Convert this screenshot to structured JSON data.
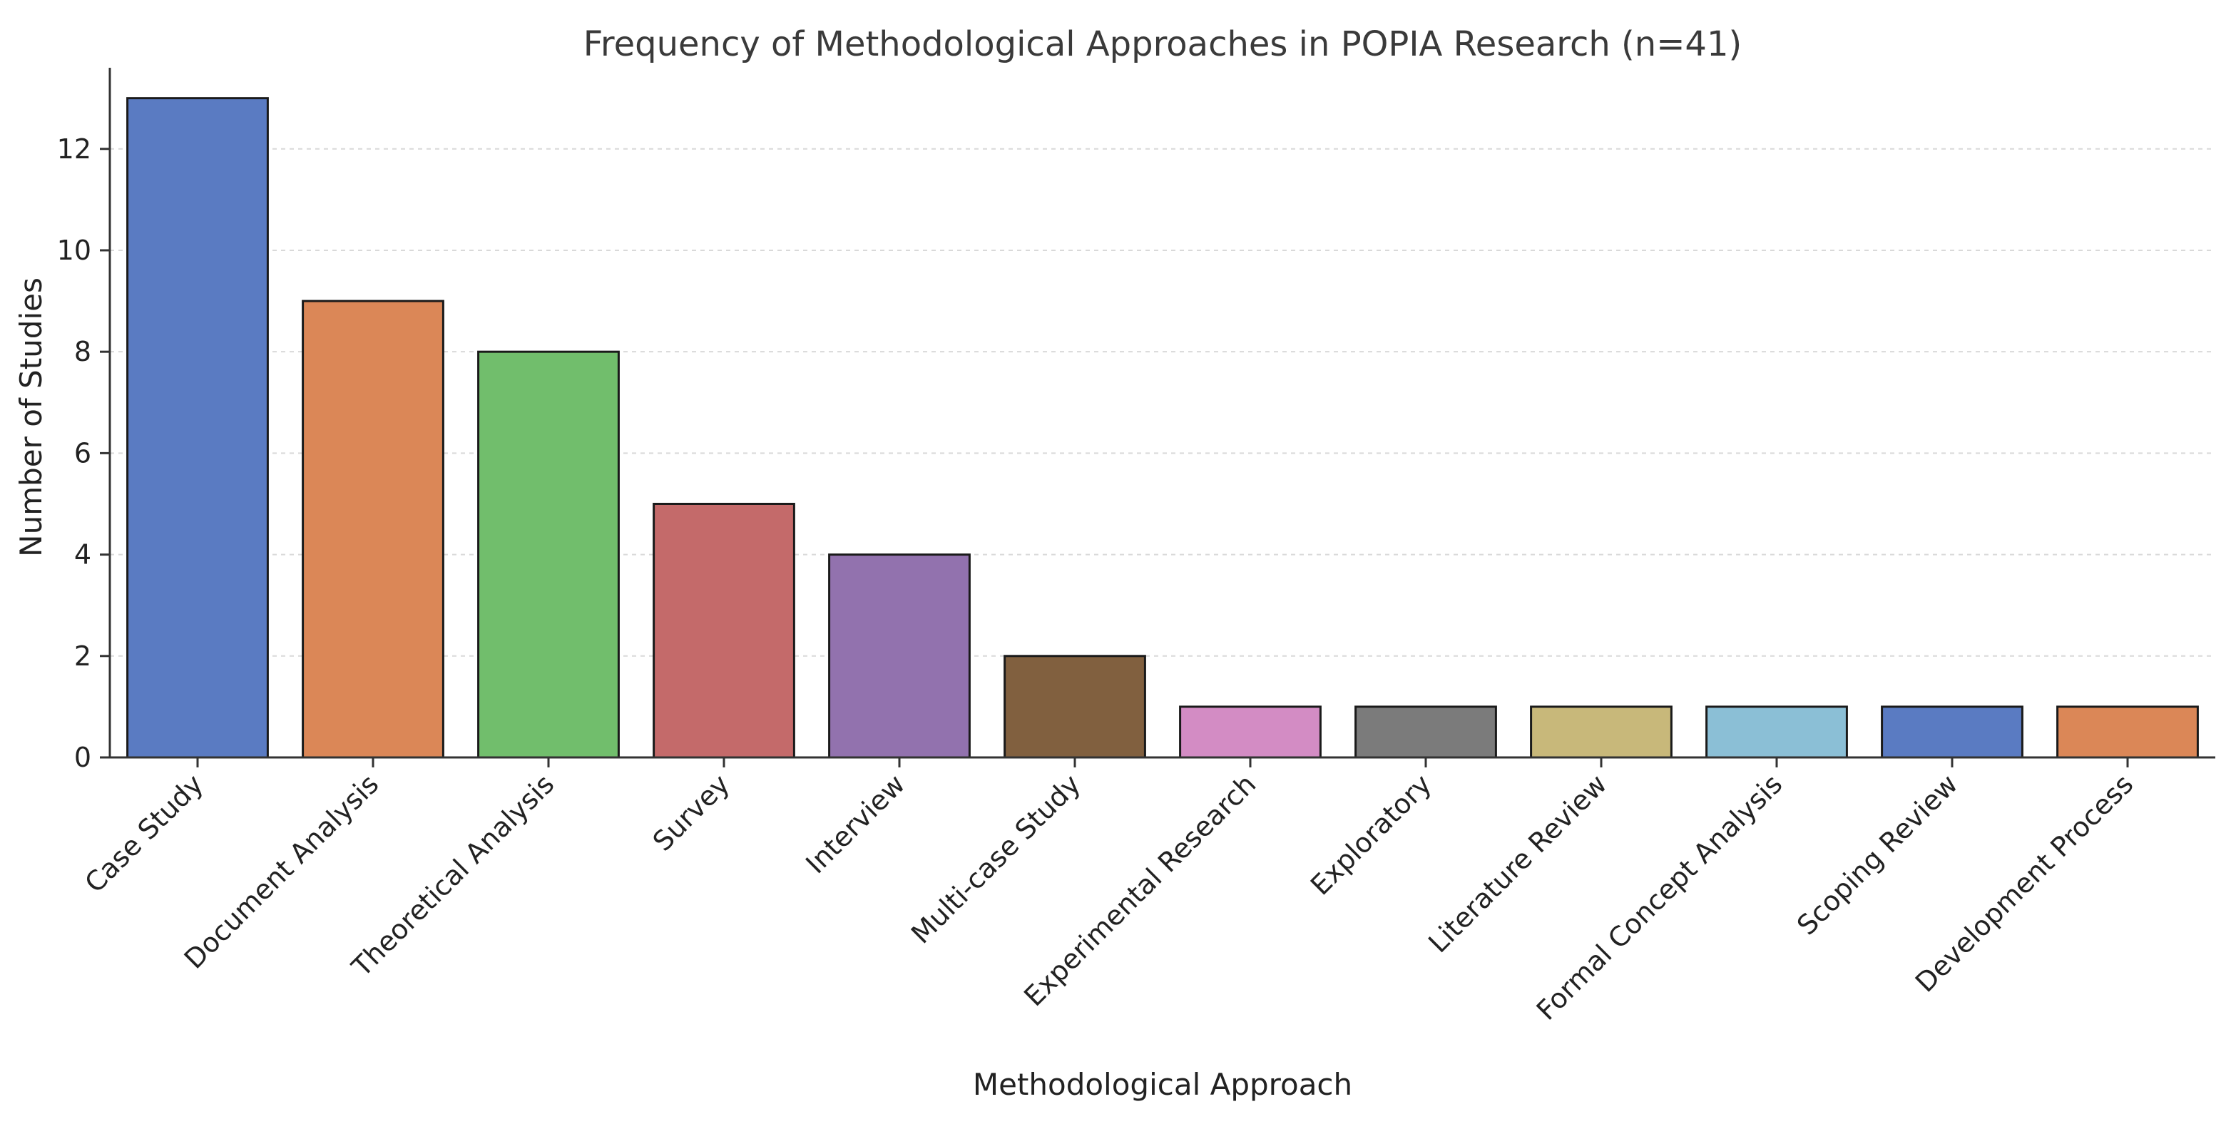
{
  "chart_data": {
    "type": "bar",
    "title": "Frequency of Methodological Approaches in POPIA Research (n=41)",
    "xlabel": "Methodological Approach",
    "ylabel": "Number of Studies",
    "ylim": [
      0,
      13.6
    ],
    "yticks": [
      0,
      2,
      4,
      6,
      8,
      10,
      12
    ],
    "grid": "horizontal dashed",
    "categories": [
      "Case Study",
      "Document Analysis",
      "Theoretical Analysis",
      "Survey",
      "Interview",
      "Multi-case Study",
      "Experimental Research",
      "Exploratory",
      "Literature Review",
      "Formal Concept Analysis",
      "Scoping Review",
      "Development Process"
    ],
    "values": [
      13,
      9,
      8,
      5,
      4,
      2,
      1,
      1,
      1,
      1,
      1,
      1
    ],
    "colors": [
      "#5a7bc2",
      "#db8757",
      "#71be6c",
      "#c46a6a",
      "#9272ae",
      "#81603f",
      "#d38cc4",
      "#7b7b7b",
      "#c8b87a",
      "#8bbfd6",
      "#5a7bc2",
      "#db8757"
    ]
  }
}
